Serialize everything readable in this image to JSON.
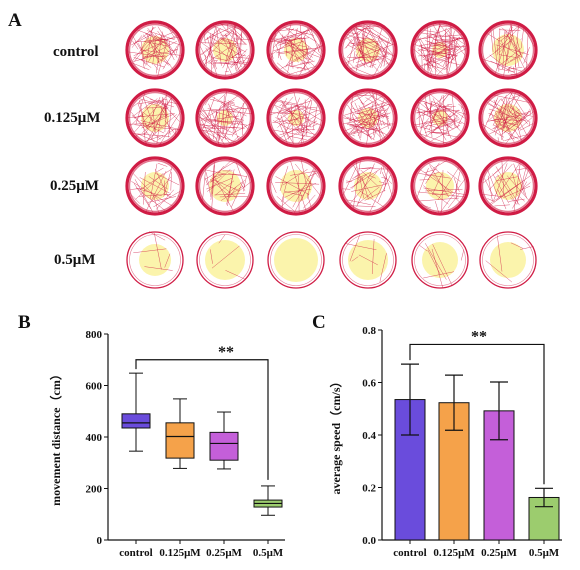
{
  "panel_a": {
    "letter": "A",
    "rows": [
      "control",
      "0.125μM",
      "0.25μM",
      "0.5μM"
    ],
    "trace_color": "#d01c45",
    "center_color": "#fbf3a8"
  },
  "chart_data": [
    {
      "panel": "B",
      "type": "box",
      "categories": [
        "control",
        "0.125μM",
        "0.25μM",
        "0.5μM"
      ],
      "boxes": [
        {
          "min": 345,
          "q1": 435,
          "median": 455,
          "q3": 490,
          "max": 648,
          "color": "#6a4cdc"
        },
        {
          "min": 278,
          "q1": 318,
          "median": 402,
          "q3": 455,
          "max": 548,
          "color": "#f5a24a"
        },
        {
          "min": 276,
          "q1": 310,
          "median": 375,
          "q3": 418,
          "max": 497,
          "color": "#c45fd9"
        },
        {
          "min": 96,
          "q1": 128,
          "median": 142,
          "q3": 155,
          "max": 210,
          "color": "#9ccc6e"
        }
      ],
      "ylabel": "movement distance（cm）",
      "ylim": [
        0,
        800
      ],
      "yticks": [
        0,
        200,
        400,
        600,
        800
      ],
      "significance": {
        "from": 0,
        "to": 3,
        "label": "**",
        "y": 700
      }
    },
    {
      "panel": "C",
      "type": "bar",
      "categories": [
        "control",
        "0.125μM",
        "0.25μM",
        "0.5μM"
      ],
      "values": [
        0.535,
        0.523,
        0.492,
        0.162
      ],
      "errors": [
        0.135,
        0.105,
        0.11,
        0.035
      ],
      "colors": [
        "#6a4cdc",
        "#f5a24a",
        "#c45fd9",
        "#9ccc6e"
      ],
      "ylabel": "average speed（cm/s）",
      "ylim": [
        0,
        0.8
      ],
      "yticks": [
        0.0,
        0.2,
        0.4,
        0.6,
        0.8
      ],
      "significance": {
        "from": 0,
        "to": 3,
        "label": "**",
        "y": 0.745
      }
    }
  ]
}
